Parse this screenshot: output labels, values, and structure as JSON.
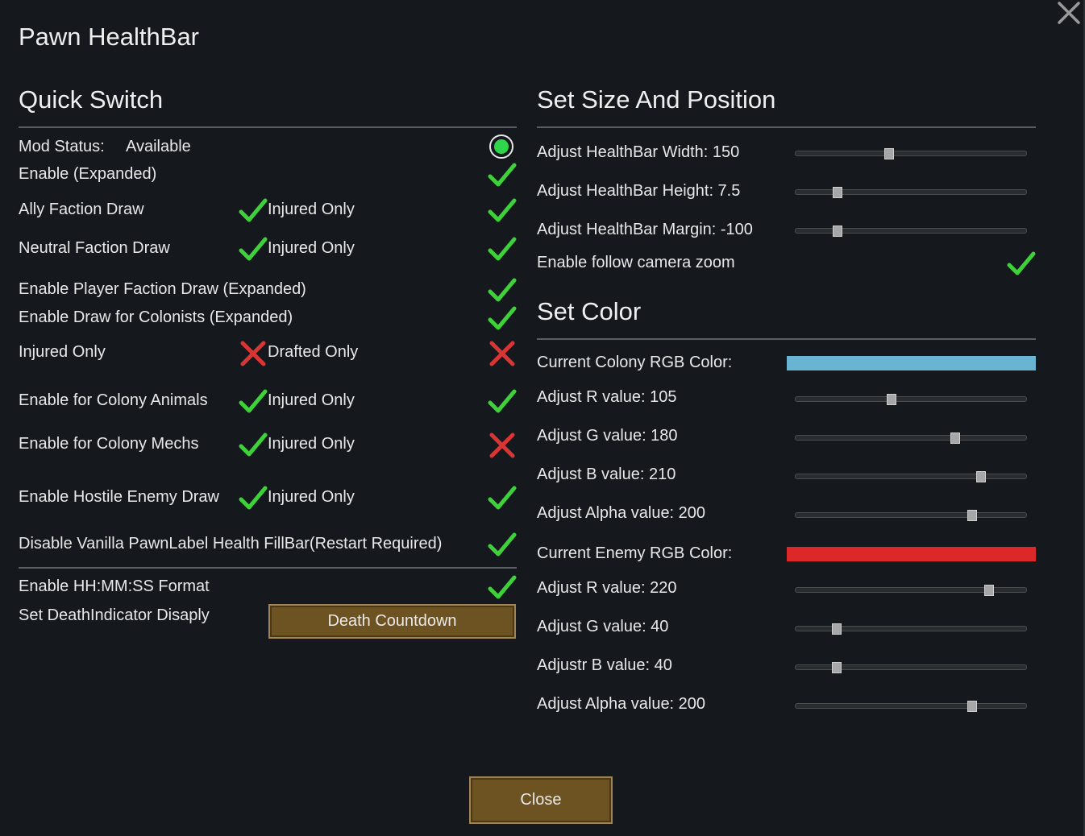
{
  "window": {
    "title": "Pawn HealthBar"
  },
  "quick_switch": {
    "heading": "Quick Switch",
    "mod_status_label": "Mod Status:",
    "mod_status_value": "Available",
    "rows": [
      {
        "label": "Enable (Expanded)"
      },
      {
        "label": "Ally Faction Draw",
        "sub_label": "Injured Only"
      },
      {
        "label": "Neutral Faction Draw",
        "sub_label": "Injured Only"
      },
      {
        "label": "Enable Player Faction Draw (Expanded)"
      },
      {
        "label": "Enable Draw for Colonists (Expanded)"
      },
      {
        "label": "Injured Only",
        "sub_label": "Drafted Only"
      },
      {
        "label": "Enable for Colony Animals",
        "sub_label": "Injured Only"
      },
      {
        "label": "Enable for Colony Mechs",
        "sub_label": "Injured Only"
      },
      {
        "label": "Enable Hostile Enemy Draw",
        "sub_label": "Injured Only"
      },
      {
        "label": "Disable Vanilla PawnLabel Health FillBar(Restart Required)"
      },
      {
        "label": "Enable HH:MM:SS Format"
      },
      {
        "label": "Set DeathIndicator Disaply"
      }
    ],
    "death_indicator_button": "Death Countdown"
  },
  "size_position": {
    "heading": "Set Size And Position",
    "width_label": "Adjust HealthBar Width:  150",
    "height_label": "Adjust HealthBar Height:  7.5",
    "margin_label": "Adjust HealthBar Margin:  -100",
    "follow_zoom_label": "Enable follow camera zoom",
    "width_fraction": 0.4,
    "height_fraction": 0.16,
    "margin_fraction": 0.16
  },
  "set_color": {
    "heading": "Set Color",
    "colony_label": "Current Colony RGB Color:",
    "colony_color": "#69b4d2",
    "colony_r_label": "Adjust R value:  105",
    "colony_g_label": "Adjust G value:  180",
    "colony_b_label": "Adjust B value:  210",
    "colony_a_label": "Adjust Alpha value:  200",
    "colony_r": 105,
    "colony_g": 180,
    "colony_b": 210,
    "colony_a": 200,
    "enemy_label": "Current Enemy RGB Color:",
    "enemy_color": "#dc2828",
    "enemy_r_label": "Adjust R value:  220",
    "enemy_g_label": "Adjust G value:  40",
    "enemy_b_label": "Adjustr B value:  40",
    "enemy_a_label": "Adjust Alpha value:  200",
    "enemy_r": 220,
    "enemy_g": 40,
    "enemy_b": 40,
    "enemy_a": 200
  },
  "footer": {
    "close_label": "Close"
  },
  "icons": {
    "check": "check-icon",
    "cross": "cross-icon",
    "status": "status-radio-icon",
    "close": "close-x-icon"
  },
  "colors": {
    "check": "#3fd13a",
    "cross": "#d93535",
    "button": "#6e5322",
    "status_on": "#2fd64a"
  }
}
